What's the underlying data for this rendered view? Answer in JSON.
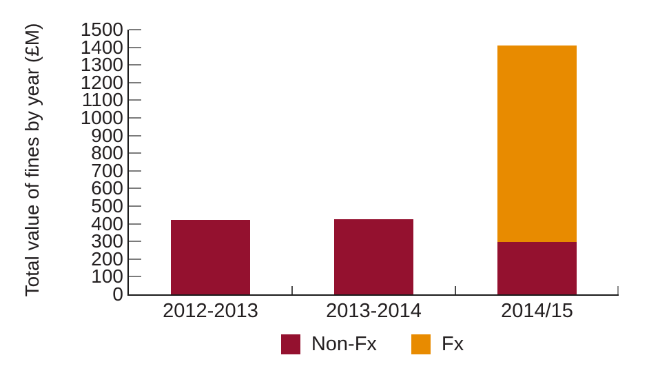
{
  "chart_data": {
    "type": "bar",
    "stacked": true,
    "title": "",
    "xlabel": "",
    "ylabel": "Total value of fines by year (£M)",
    "categories": [
      "2012-2013",
      "2013-2014",
      "2014/15"
    ],
    "series": [
      {
        "name": "Non-Fx",
        "color": "#94112F",
        "values": [
          423,
          425,
          295
        ]
      },
      {
        "name": "Fx",
        "color": "#E88B00",
        "values": [
          0,
          0,
          1114
        ]
      }
    ],
    "ylim": [
      0,
      1500
    ],
    "ytick_step": 100,
    "grid": false,
    "legend_position": "bottom-center"
  },
  "colors": {
    "axis": "#1a1a1a",
    "tick_minor": "#7b7b7b",
    "tick_boundary": "#4a4a4a",
    "tick_end": "#8a8a8a",
    "text": "#231F20",
    "non_fx": "#94112F",
    "fx": "#E88B00"
  }
}
